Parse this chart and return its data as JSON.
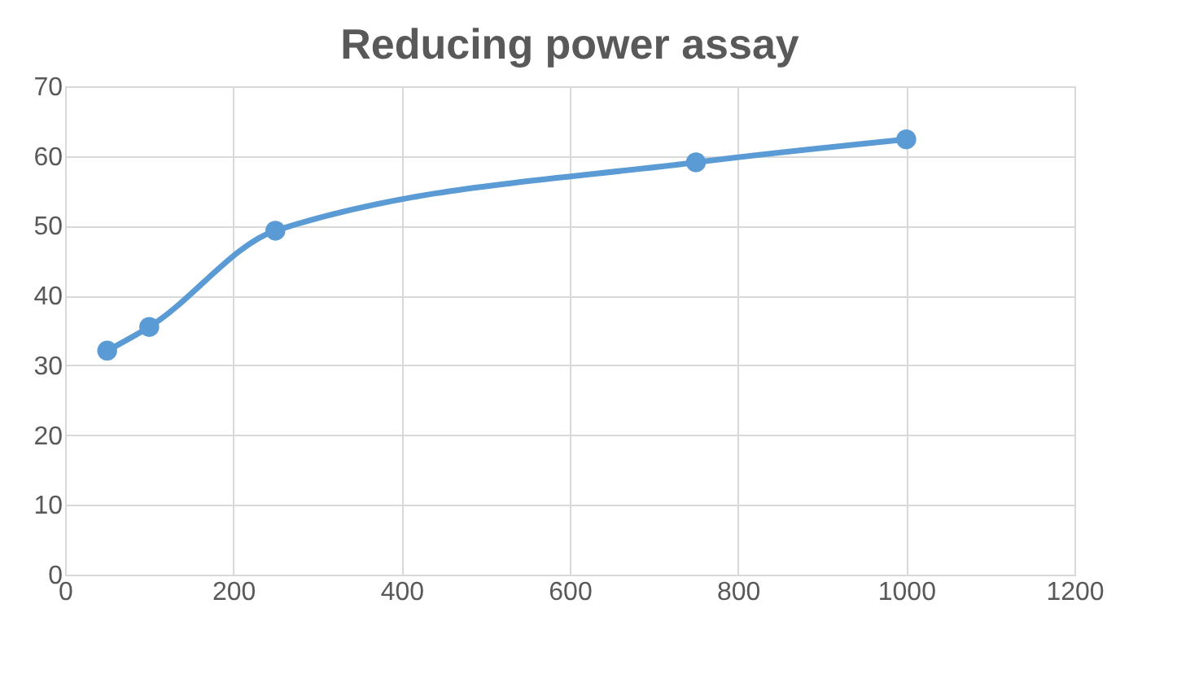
{
  "chart_data": {
    "type": "line",
    "title": "Reducing power assay",
    "x": [
      50,
      100,
      250,
      750,
      1000
    ],
    "series": [
      {
        "color": "#5b9bd5",
        "values": [
          32.1,
          35.5,
          49.3,
          59.1,
          62.4
        ]
      }
    ],
    "xlim": [
      0,
      1200
    ],
    "xticks": [
      0,
      200,
      400,
      600,
      800,
      1000,
      1200
    ],
    "ylim": [
      0,
      70
    ],
    "yticks": [
      0,
      10,
      20,
      30,
      40,
      50,
      60,
      70
    ],
    "grid": true,
    "marker": "circle",
    "line_style": "solid"
  }
}
